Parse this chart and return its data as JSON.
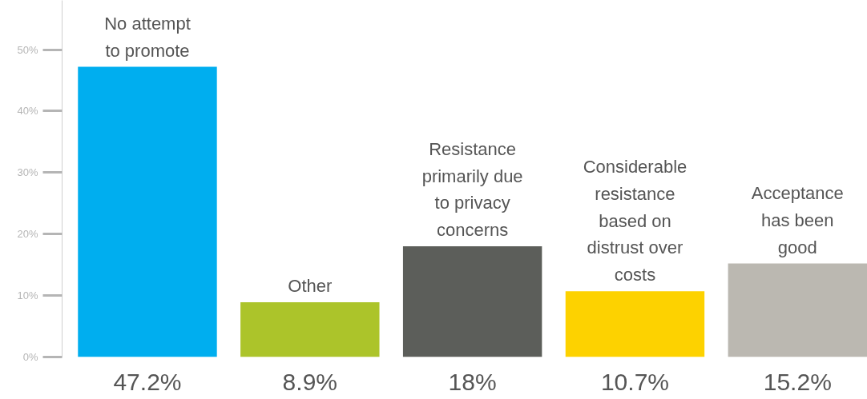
{
  "chart_data": {
    "type": "bar",
    "categories": [
      "No attempt\nto promote",
      "Other",
      "Resistance\nprimarily due\nto privacy\nconcerns",
      "Considerable\nresistance\nbased on\ndistrust over\ncosts",
      "Acceptance\nhas been\ngood"
    ],
    "values": [
      47.2,
      8.9,
      18,
      10.7,
      15.2
    ],
    "colors": [
      "#00aeef",
      "#acc42a",
      "#5c5e5a",
      "#fdd200",
      "#bbb8b1"
    ],
    "value_labels": [
      "47.2%",
      "8.9%",
      "18%",
      "10.7%",
      "15.2%"
    ],
    "yticks": [
      {
        "value": 0,
        "label": "0%"
      },
      {
        "value": 10,
        "label": "10%"
      },
      {
        "value": 20,
        "label": "20%"
      },
      {
        "value": 30,
        "label": "30%"
      },
      {
        "value": 40,
        "label": "40%"
      },
      {
        "value": 50,
        "label": "50%"
      }
    ],
    "ylim": [
      0,
      58
    ],
    "grid": false
  }
}
